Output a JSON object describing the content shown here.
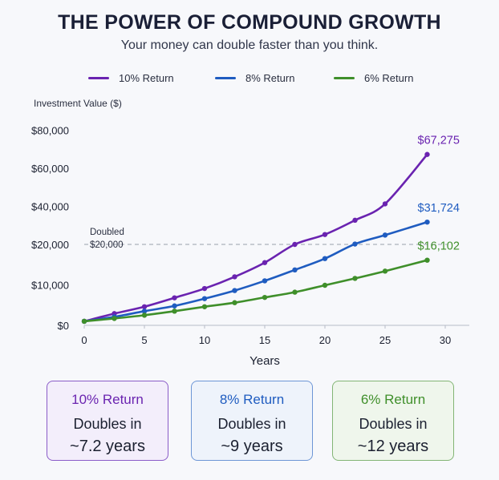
{
  "header": {
    "title": "THE POWER OF COMPOUND GROWTH",
    "subtitle": "Your money can double faster than you think."
  },
  "legend": [
    {
      "label": "10% Return",
      "color": "#6a23b0"
    },
    {
      "label": "8% Return",
      "color": "#1f5cc0"
    },
    {
      "label": "6% Return",
      "color": "#3f8f2a"
    }
  ],
  "chart_data": {
    "type": "line",
    "ylabel": "Investment Value ($)",
    "xlabel": "Years",
    "xlim": [
      0,
      30
    ],
    "ylim": [
      0,
      85000
    ],
    "x_ticks": [
      0,
      5,
      10,
      15,
      20,
      25,
      30
    ],
    "y_ticks": [
      0,
      10000,
      20000,
      40000,
      60000,
      80000
    ],
    "y_tick_labels": [
      "$0",
      "$10,000",
      "$20,000",
      "$40,000",
      "$60,000",
      "$80,000"
    ],
    "grid": false,
    "x": [
      0,
      2.5,
      5,
      7.5,
      10,
      12.5,
      15,
      17.5,
      20,
      22.5,
      25,
      28.5
    ],
    "series": [
      {
        "name": "10% Return",
        "color": "#6a23b0",
        "values": [
          1000,
          2900,
          4600,
          6800,
          9100,
          12000,
          15500,
          20000,
          25200,
          32700,
          41300,
          67275
        ],
        "end_label": "$67,275"
      },
      {
        "name": "8% Return",
        "color": "#1f5cc0",
        "values": [
          1000,
          2100,
          3500,
          4800,
          6600,
          8600,
          11000,
          13700,
          16500,
          20200,
          24900,
          31724
        ],
        "end_label": "$31,724"
      },
      {
        "name": "6% Return",
        "color": "#3f8f2a",
        "values": [
          1000,
          1700,
          2500,
          3500,
          4600,
          5600,
          6900,
          8200,
          9900,
          11600,
          13400,
          16102
        ],
        "end_label": "$16,102"
      }
    ],
    "reference_line": {
      "value": 20000,
      "label_1": "Doubled",
      "label_2": "$20,000"
    }
  },
  "cards": [
    {
      "title": "10% Return",
      "line1": "Doubles in",
      "line2": "~7.2 years",
      "accent": "#6a23b0",
      "bg": "#f3eefb",
      "border": "#8a5cc8"
    },
    {
      "title": "8% Return",
      "line1": "Doubles in",
      "line2": "~9 years",
      "accent": "#1f5cc0",
      "bg": "#eef3fb",
      "border": "#6d96d6"
    },
    {
      "title": "6% Return",
      "line1": "Doubles in",
      "line2": "~12 years",
      "accent": "#3f8f2a",
      "bg": "#eff6ec",
      "border": "#83b575"
    }
  ]
}
